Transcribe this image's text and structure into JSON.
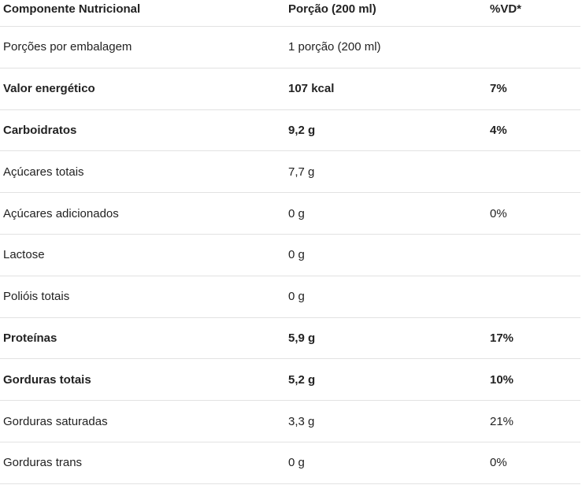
{
  "table": {
    "headers": [
      "Componente Nutricional",
      "Porção (200 ml)",
      "%VD*"
    ],
    "rows": [
      {
        "name": "Porções por embalagem",
        "portion": "1 porção (200 ml)",
        "vd": "",
        "bold": false
      },
      {
        "name": "Valor energético",
        "portion": "107 kcal",
        "vd": "7%",
        "bold": true
      },
      {
        "name": "Carboidratos",
        "portion": "9,2 g",
        "vd": "4%",
        "bold": true
      },
      {
        "name": "Açúcares totais",
        "portion": "7,7 g",
        "vd": "",
        "bold": false
      },
      {
        "name": "Açúcares adicionados",
        "portion": "0 g",
        "vd": "0%",
        "bold": false
      },
      {
        "name": "Lactose",
        "portion": "0 g",
        "vd": "",
        "bold": false
      },
      {
        "name": "Polióis totais",
        "portion": "0 g",
        "vd": "",
        "bold": false
      },
      {
        "name": "Proteínas",
        "portion": "5,9 g",
        "vd": "17%",
        "bold": true
      },
      {
        "name": "Gorduras totais",
        "portion": "5,2 g",
        "vd": "10%",
        "bold": true
      },
      {
        "name": "Gorduras saturadas",
        "portion": "3,3 g",
        "vd": "21%",
        "bold": false
      },
      {
        "name": "Gorduras trans",
        "portion": "0 g",
        "vd": "0%",
        "bold": false
      }
    ]
  }
}
